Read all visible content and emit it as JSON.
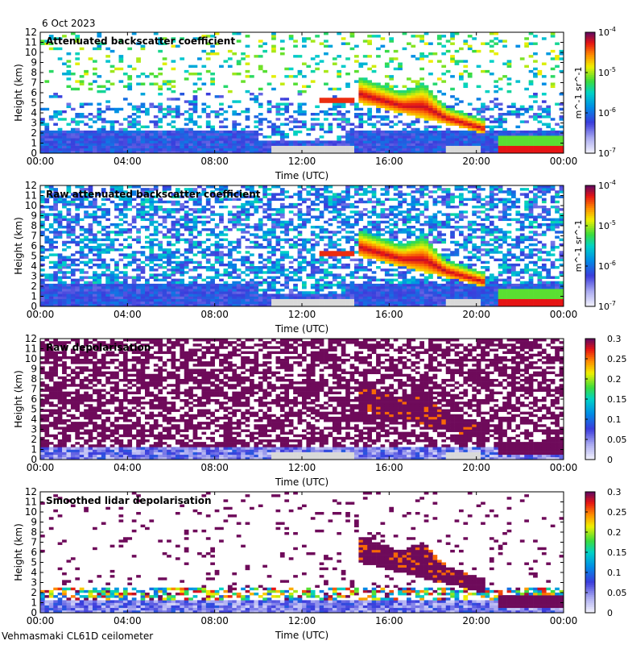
{
  "header": {
    "date": "6 Oct 2023"
  },
  "footer": {
    "site": "Vehmasmaki CL61D ceilometer"
  },
  "chart_data": [
    {
      "type": "heatmap",
      "title": "Attenuated backscatter coefficient",
      "xlabel": "Time (UTC)",
      "ylabel": "Height (km)",
      "xticks": [
        "00:00",
        "04:00",
        "08:00",
        "12:00",
        "16:00",
        "20:00",
        "00:00"
      ],
      "xlim_hours": [
        0,
        24
      ],
      "ylim": [
        0,
        12
      ],
      "yticks": [
        0,
        1,
        2,
        3,
        4,
        5,
        6,
        7,
        8,
        9,
        10,
        11,
        12
      ],
      "colorbar": {
        "scale": "log",
        "ticks": [
          "10^-4",
          "10^-5",
          "10^-6",
          "10^-7"
        ],
        "label": "m^-1 sr^-1"
      },
      "features": [
        {
          "name": "noise",
          "level": "low-mid",
          "t": [
            0,
            24
          ]
        },
        {
          "name": "boundary layer",
          "level": "low",
          "t": [
            0,
            24
          ],
          "top_km": 2.5
        },
        {
          "name": "thin cloud",
          "t": [
            12.7,
            14.5
          ],
          "h_km": [
            4.9,
            5.5
          ],
          "level": "high"
        },
        {
          "name": "cloud band",
          "t": [
            14.6,
            20.3
          ],
          "h_km_start": [
            5.0,
            7.5
          ],
          "h_km_end": [
            2.0,
            3.5
          ],
          "level": "high"
        },
        {
          "name": "low cloud",
          "t": [
            21.0,
            24
          ],
          "h_km": [
            0.2,
            1.6
          ],
          "level": "very high"
        }
      ]
    },
    {
      "type": "heatmap",
      "title": "Raw attenuated backscatter coefficient",
      "xlabel": "Time (UTC)",
      "ylabel": "Height (km)",
      "xticks": [
        "00:00",
        "04:00",
        "08:00",
        "12:00",
        "16:00",
        "20:00",
        "00:00"
      ],
      "xlim_hours": [
        0,
        24
      ],
      "ylim": [
        0,
        12
      ],
      "yticks": [
        0,
        1,
        2,
        3,
        4,
        5,
        6,
        7,
        8,
        9,
        10,
        11,
        12
      ],
      "colorbar": {
        "scale": "log",
        "ticks": [
          "10^-4",
          "10^-5",
          "10^-6",
          "10^-7"
        ],
        "label": "m^-1 sr^-1"
      }
    },
    {
      "type": "heatmap",
      "title": "Raw depolarisation",
      "xlabel": "Time (UTC)",
      "ylabel": "Height (km)",
      "xticks": [
        "00:00",
        "04:00",
        "08:00",
        "12:00",
        "16:00",
        "20:00",
        "00:00"
      ],
      "xlim_hours": [
        0,
        24
      ],
      "ylim": [
        0,
        12
      ],
      "yticks": [
        0,
        1,
        2,
        3,
        4,
        5,
        6,
        7,
        8,
        9,
        10,
        11,
        12
      ],
      "colorbar": {
        "scale": "linear",
        "range": [
          0,
          0.3
        ],
        "ticks": [
          "0.3",
          "0.25",
          "0.2",
          "0.15",
          "0.1",
          "0.05",
          "0"
        ]
      }
    },
    {
      "type": "heatmap",
      "title": "Smoothed lidar depolarisation",
      "xlabel": "Time (UTC)",
      "ylabel": "Height (km)",
      "xticks": [
        "00:00",
        "04:00",
        "08:00",
        "12:00",
        "16:00",
        "20:00",
        "00:00"
      ],
      "xlim_hours": [
        0,
        24
      ],
      "ylim": [
        0,
        12
      ],
      "yticks": [
        0,
        1,
        2,
        3,
        4,
        5,
        6,
        7,
        8,
        9,
        10,
        11,
        12
      ],
      "colorbar": {
        "scale": "linear",
        "range": [
          0,
          0.3
        ],
        "ticks": [
          "0.3",
          "0.25",
          "0.2",
          "0.15",
          "0.1",
          "0.05",
          "0"
        ]
      }
    }
  ],
  "colors": {
    "gap": "#d9d9d9",
    "depol_background": "#7a0a5a"
  }
}
